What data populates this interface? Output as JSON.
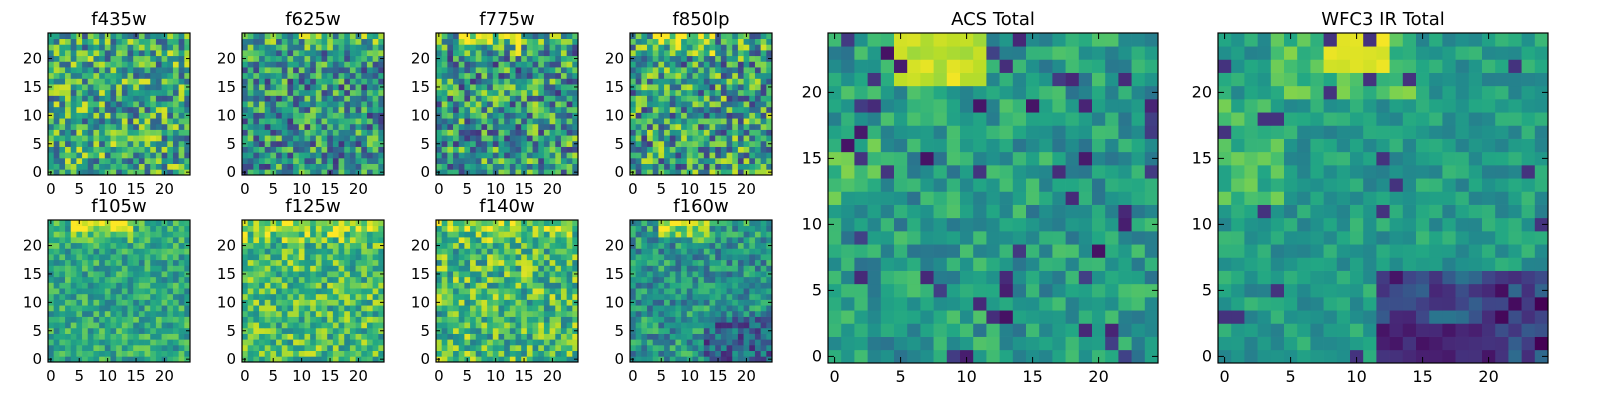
{
  "chart_data": [
    {
      "type": "heatmap",
      "title": "f435w",
      "xticks": [
        0,
        5,
        10,
        15,
        20
      ],
      "yticks": [
        0,
        5,
        10,
        15,
        20
      ],
      "xlim": [
        -0.5,
        24.5
      ],
      "ylim": [
        -0.5,
        24.5
      ],
      "grid_size": [
        25,
        25
      ],
      "colormap": "viridis",
      "pattern": "noisy, uniformly bright with scattered dark pixels"
    },
    {
      "type": "heatmap",
      "title": "f625w",
      "xticks": [
        0,
        5,
        10,
        15,
        20
      ],
      "yticks": [
        0,
        5,
        10,
        15,
        20
      ],
      "xlim": [
        -0.5,
        24.5
      ],
      "ylim": [
        -0.5,
        24.5
      ],
      "grid_size": [
        25,
        25
      ],
      "colormap": "viridis",
      "pattern": "noisy, slightly brighter near top"
    },
    {
      "type": "heatmap",
      "title": "f775w",
      "xticks": [
        0,
        5,
        10,
        15,
        20
      ],
      "yticks": [
        0,
        5,
        10,
        15,
        20
      ],
      "xlim": [
        -0.5,
        24.5
      ],
      "ylim": [
        -0.5,
        24.5
      ],
      "grid_size": [
        25,
        25
      ],
      "colormap": "viridis",
      "pattern": "noisy, bright band at top center"
    },
    {
      "type": "heatmap",
      "title": "f850lp",
      "xticks": [
        0,
        5,
        10,
        15,
        20
      ],
      "yticks": [
        0,
        5,
        10,
        15,
        20
      ],
      "xlim": [
        -0.5,
        24.5
      ],
      "ylim": [
        -0.5,
        24.5
      ],
      "grid_size": [
        25,
        25
      ],
      "colormap": "viridis",
      "pattern": "noisy, bright band at top center"
    },
    {
      "type": "heatmap",
      "title": "f105w",
      "xticks": [
        0,
        5,
        10,
        15,
        20
      ],
      "yticks": [
        0,
        5,
        10,
        15,
        20
      ],
      "xlim": [
        -0.5,
        24.5
      ],
      "ylim": [
        -0.5,
        24.5
      ],
      "grid_size": [
        25,
        25
      ],
      "colormap": "viridis",
      "pattern": "smooth, bright top center"
    },
    {
      "type": "heatmap",
      "title": "f125w",
      "xticks": [
        0,
        5,
        10,
        15,
        20
      ],
      "yticks": [
        0,
        5,
        10,
        15,
        20
      ],
      "xlim": [
        -0.5,
        24.5
      ],
      "ylim": [
        -0.5,
        24.5
      ],
      "grid_size": [
        25,
        25
      ],
      "colormap": "viridis",
      "pattern": "bright overall, bright top"
    },
    {
      "type": "heatmap",
      "title": "f140w",
      "xticks": [
        0,
        5,
        10,
        15,
        20
      ],
      "yticks": [
        0,
        5,
        10,
        15,
        20
      ],
      "xlim": [
        -0.5,
        24.5
      ],
      "ylim": [
        -0.5,
        24.5
      ],
      "grid_size": [
        25,
        25
      ],
      "colormap": "viridis",
      "pattern": "bright overall with dark spots"
    },
    {
      "type": "heatmap",
      "title": "f160w",
      "xticks": [
        0,
        5,
        10,
        15,
        20
      ],
      "yticks": [
        0,
        5,
        10,
        15,
        20
      ],
      "xlim": [
        -0.5,
        24.5
      ],
      "ylim": [
        -0.5,
        24.5
      ],
      "grid_size": [
        25,
        25
      ],
      "colormap": "viridis",
      "pattern": "bright top center, darker bottom right"
    },
    {
      "type": "heatmap",
      "title": "ACS Total",
      "xticks": [
        0,
        5,
        10,
        15,
        20
      ],
      "yticks": [
        0,
        5,
        10,
        15,
        20
      ],
      "xlim": [
        -0.5,
        24.5
      ],
      "ylim": [
        -0.5,
        24.5
      ],
      "grid_size": [
        25,
        25
      ],
      "colormap": "viridis",
      "pattern": "bright yellow block near top (x 5-11, y 22-24), mid-green elsewhere, scattered dark pixels"
    },
    {
      "type": "heatmap",
      "title": "WFC3 IR Total",
      "xticks": [
        0,
        5,
        10,
        15,
        20
      ],
      "yticks": [
        0,
        5,
        10,
        15,
        20
      ],
      "xlim": [
        -0.5,
        24.5
      ],
      "ylim": [
        -0.5,
        24.5
      ],
      "grid_size": [
        25,
        25
      ],
      "colormap": "viridis",
      "pattern": "bright yellow block near top (x 8-12, y 22-24), brighter left side, dark purple region bottom right"
    }
  ]
}
